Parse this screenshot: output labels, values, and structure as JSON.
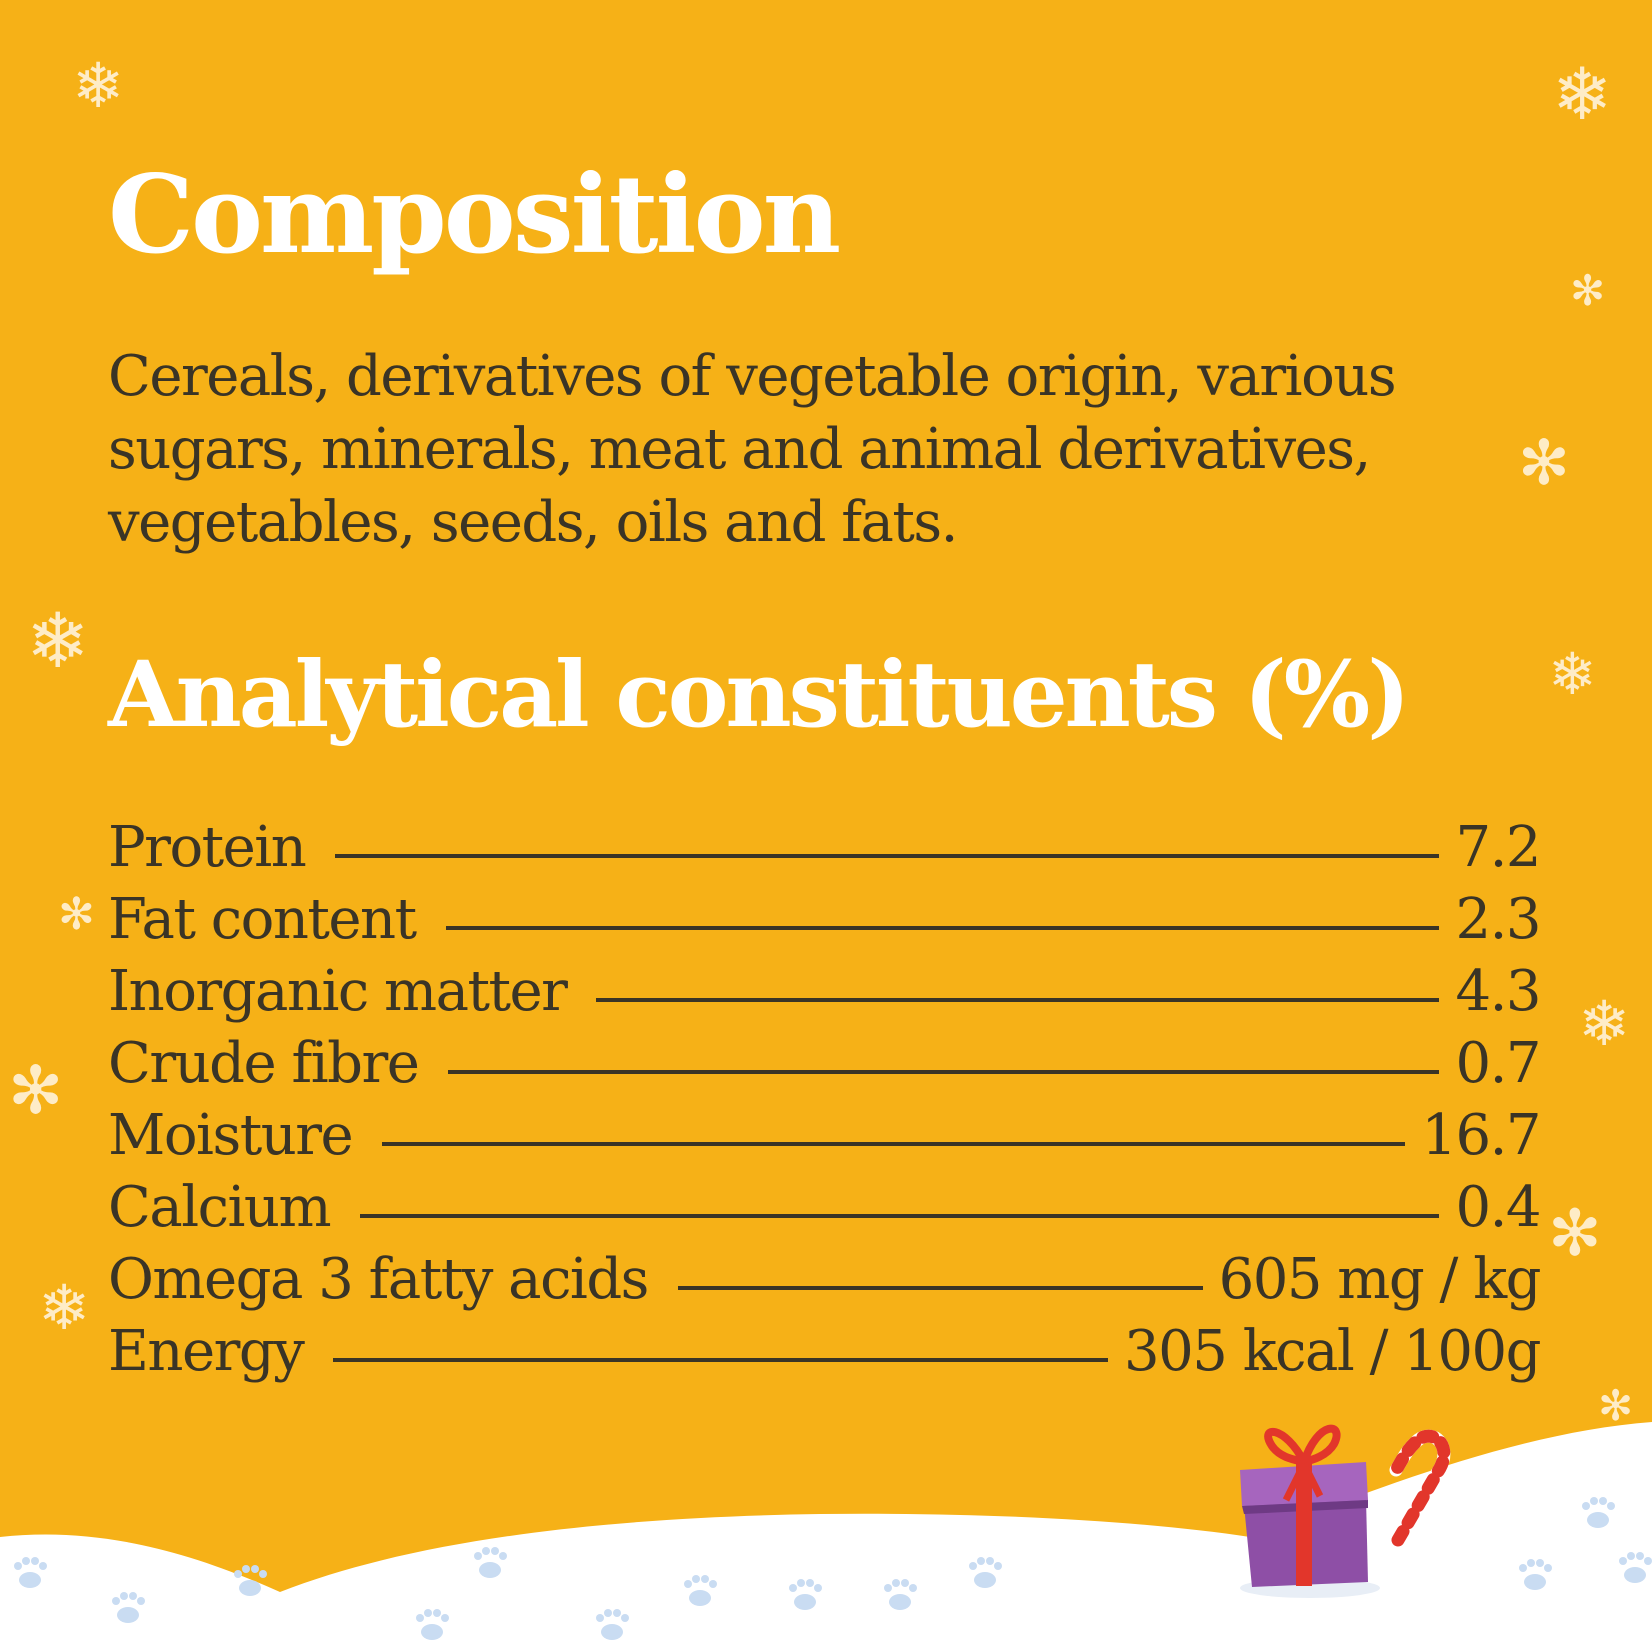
{
  "composition": {
    "heading": "Composition",
    "text": "Cereals, derivatives of vegetable origin, various sugars, minerals, meat and animal derivatives, vegetables, seeds, oils and fats."
  },
  "analytical": {
    "heading": "Analytical constituents (%)",
    "rows": [
      {
        "label": "Protein",
        "value": "7.2"
      },
      {
        "label": "Fat content",
        "value": "2.3"
      },
      {
        "label": "Inorganic matter",
        "value": "4.3"
      },
      {
        "label": "Crude fibre",
        "value": "0.7"
      },
      {
        "label": "Moisture",
        "value": "16.7"
      },
      {
        "label": "Calcium",
        "value": "0.4"
      },
      {
        "label": "Omega 3 fatty acids",
        "value": "605 mg / kg"
      },
      {
        "label": "Energy",
        "value": "305 kcal / 100g"
      }
    ]
  },
  "colors": {
    "background": "#F6B117",
    "heading": "#FFFFFF",
    "body_text": "#3A3426",
    "snow": "#FFFFFF",
    "paw_prints": "#C9DCF2",
    "gift_box": "#8E4FA6",
    "gift_ribbon": "#E2362B",
    "candy_cane": "#E2362B"
  },
  "icons": [
    "snowflake-icon",
    "gift-icon",
    "candy-cane-icon",
    "paw-print-icon"
  ]
}
